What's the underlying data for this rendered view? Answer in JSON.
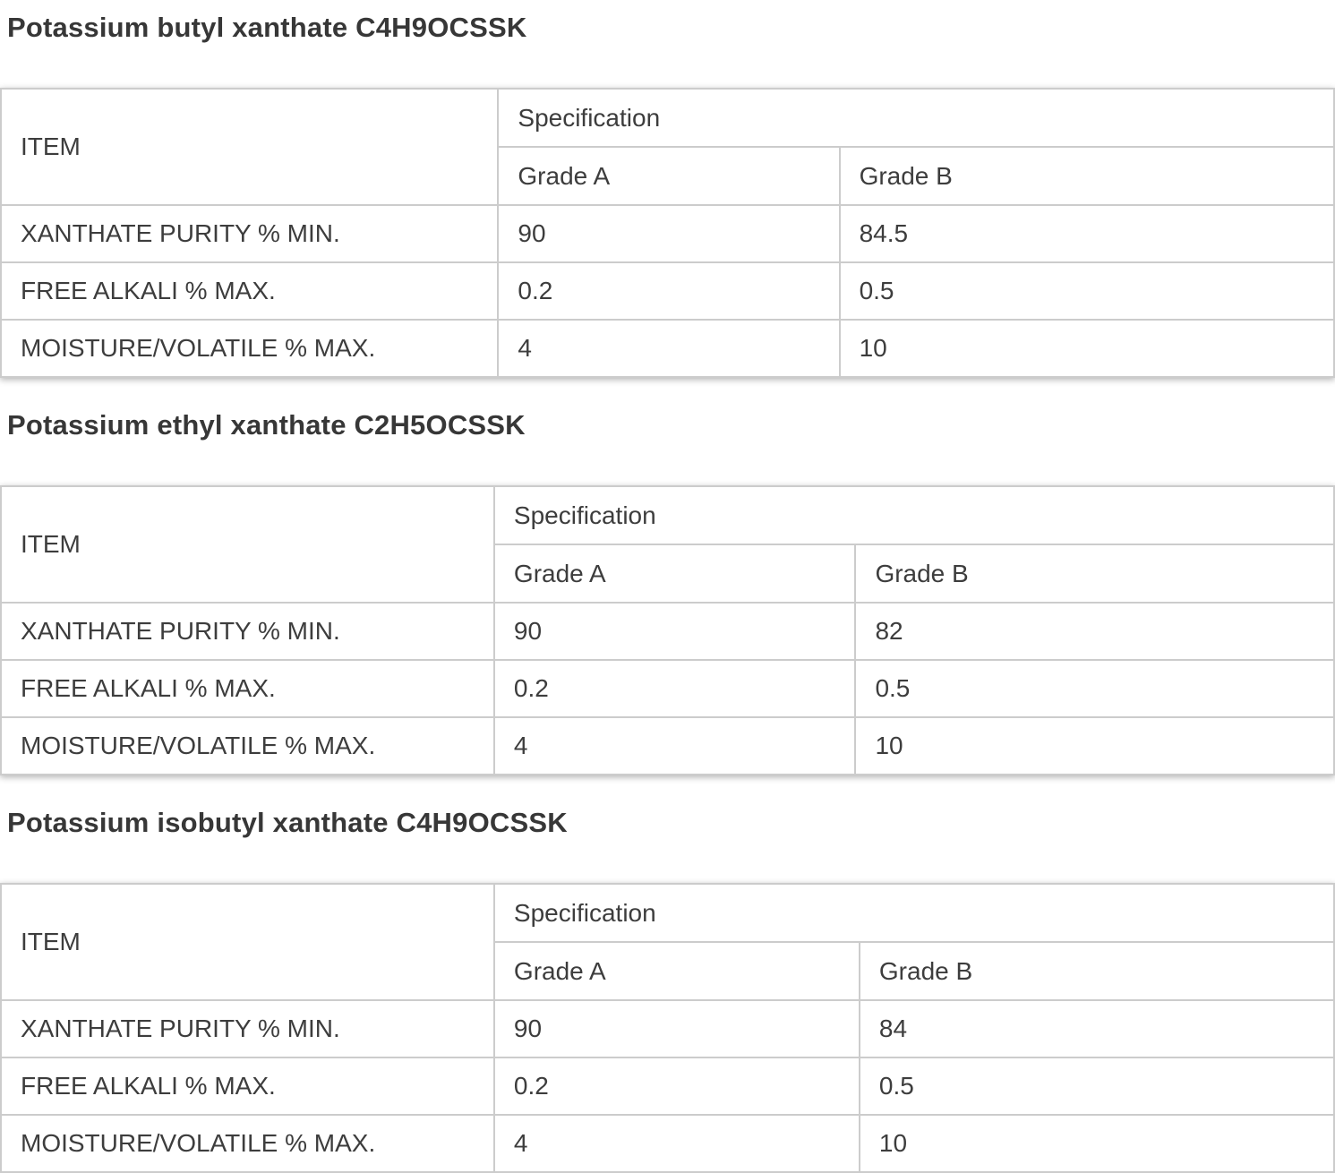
{
  "colors": {
    "background": "#ffffff",
    "text": "#3d3d3d",
    "heading_text": "#373737",
    "table_border": "#cccccc"
  },
  "sections": [
    {
      "heading": "Potassium butyl xanthate C4H9OCSSK",
      "table": {
        "item_header": "ITEM",
        "spec_header": "Specification",
        "grade_a_header": "Grade A",
        "grade_b_header": "Grade B",
        "rows": [
          {
            "item": "XANTHATE PURITY % MIN.",
            "grade_a": "90",
            "grade_b": "84.5"
          },
          {
            "item": "FREE ALKALI % MAX.",
            "grade_a": "0.2",
            "grade_b": "0.5"
          },
          {
            "item": "MOISTURE/VOLATILE % MAX.",
            "grade_a": "4",
            "grade_b": "10"
          }
        ]
      }
    },
    {
      "heading": "Potassium ethyl xanthate C2H5OCSSK",
      "table": {
        "item_header": "ITEM",
        "spec_header": "Specification",
        "grade_a_header": "Grade A",
        "grade_b_header": "Grade B",
        "rows": [
          {
            "item": "XANTHATE PURITY % MIN.",
            "grade_a": "90",
            "grade_b": "82"
          },
          {
            "item": "FREE ALKALI % MAX.",
            "grade_a": "0.2",
            "grade_b": "0.5"
          },
          {
            "item": "MOISTURE/VOLATILE % MAX.",
            "grade_a": "4",
            "grade_b": "10"
          }
        ]
      }
    },
    {
      "heading": "Potassium isobutyl xanthate C4H9OCSSK",
      "table": {
        "item_header": "ITEM",
        "spec_header": "Specification",
        "grade_a_header": "Grade A",
        "grade_b_header": "Grade B",
        "rows": [
          {
            "item": "XANTHATE PURITY % MIN.",
            "grade_a": "90",
            "grade_b": "84"
          },
          {
            "item": "FREE ALKALI % MAX.",
            "grade_a": "0.2",
            "grade_b": "0.5"
          },
          {
            "item": "MOISTURE/VOLATILE % MAX.",
            "grade_a": "4",
            "grade_b": "10"
          }
        ]
      }
    }
  ]
}
